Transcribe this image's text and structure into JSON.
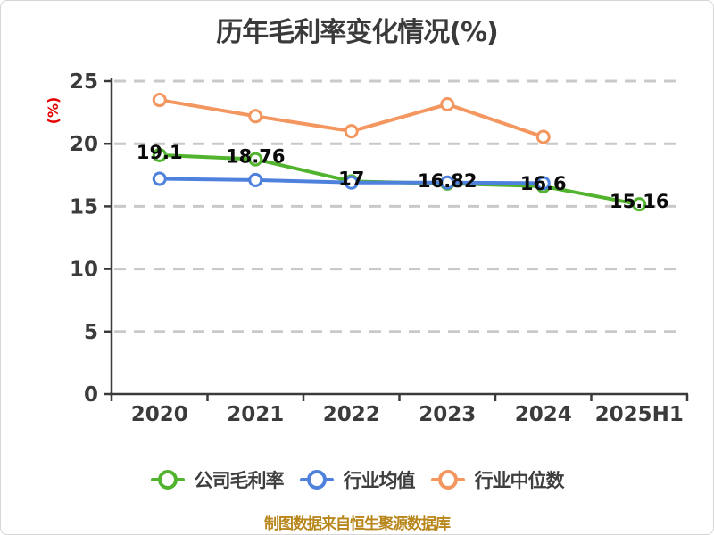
{
  "title": "历年毛利率变化情况(%)",
  "y_axis_label": "(%)",
  "caption": "制图数据来自恒生聚源数据库",
  "colors": {
    "company_green": "#52b32e",
    "industry_avg_blue": "#4e81dc",
    "industry_median_orange": "#f3965f",
    "grid": "#c9c9c9",
    "axis": "#3a3a3a",
    "title_text": "#3a3a3a",
    "data_label": "#0a0a0a",
    "y_axis_label_red": "#e60000",
    "caption_gold": "#b8861b"
  },
  "chart_data": {
    "type": "line",
    "title": "历年毛利率变化情况(%)",
    "xlabel": "",
    "ylabel": "(%)",
    "categories": [
      "2020",
      "2021",
      "2022",
      "2023",
      "2024",
      "2025H1"
    ],
    "series": [
      {
        "name": "公司毛利率",
        "color": "#52b32e",
        "values": [
          19.1,
          18.76,
          17,
          16.82,
          16.6,
          15.16
        ],
        "labels": [
          "19.1",
          "18.76",
          "17",
          "16.82",
          "16.6",
          "15.16"
        ]
      },
      {
        "name": "行业均值",
        "color": "#4e81dc",
        "values": [
          17.2,
          17.1,
          16.9,
          16.9,
          16.85
        ]
      },
      {
        "name": "行业中位数",
        "color": "#f3965f",
        "values": [
          23.5,
          22.2,
          21.0,
          23.15,
          20.55
        ]
      }
    ],
    "ylim": [
      0,
      25
    ],
    "yticks": [
      0,
      5,
      10,
      15,
      20,
      25
    ],
    "grid": "horizontal-dashed",
    "legend_position": "bottom",
    "marker": "open-circle-white-fill",
    "data_labels_on_series": "公司毛利率"
  }
}
